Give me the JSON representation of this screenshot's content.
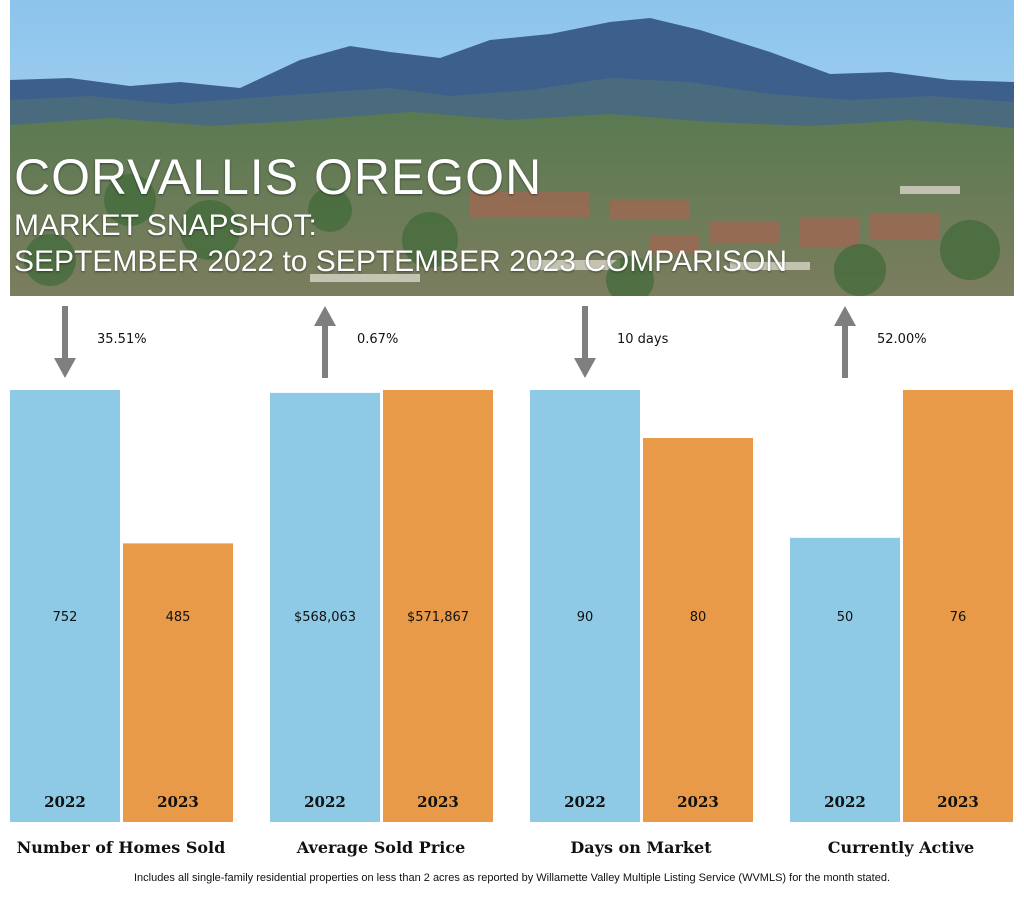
{
  "header": {
    "title": "CORVALLIS OREGON",
    "subtitle_line1": "MARKET SNAPSHOT:",
    "subtitle_line2": "SEPTEMBER 2022 to SEPTEMBER 2023 COMPARISON"
  },
  "colors": {
    "series_2022": "#8ecae6",
    "series_2023": "#e89a48",
    "arrow": "#7f7f7f"
  },
  "chart_data": {
    "type": "bar",
    "series": [
      {
        "name": "2022"
      },
      {
        "name": "2023"
      }
    ],
    "groups": [
      {
        "label": "Number of Homes Sold",
        "change_label": "35.51%",
        "direction": "down",
        "values": [
          752,
          485
        ],
        "value_labels": [
          "752",
          "485"
        ]
      },
      {
        "label": "Average Sold Price",
        "change_label": "0.67%",
        "direction": "up",
        "values": [
          568063,
          571867
        ],
        "value_labels": [
          "$568,063",
          "$571,867"
        ]
      },
      {
        "label": "Days on Market",
        "change_label": "10 days",
        "direction": "down",
        "values": [
          90,
          80
        ],
        "value_labels": [
          "90",
          "80"
        ]
      },
      {
        "label": "Currently Active",
        "change_label": "52.00%",
        "direction": "up",
        "values": [
          50,
          76
        ],
        "value_labels": [
          "50",
          "76"
        ]
      }
    ]
  },
  "footnote": "Includes all single-family residential properties on less than 2 acres as reported by Willamette Valley Multiple Listing Service (WVMLS) for the month stated."
}
